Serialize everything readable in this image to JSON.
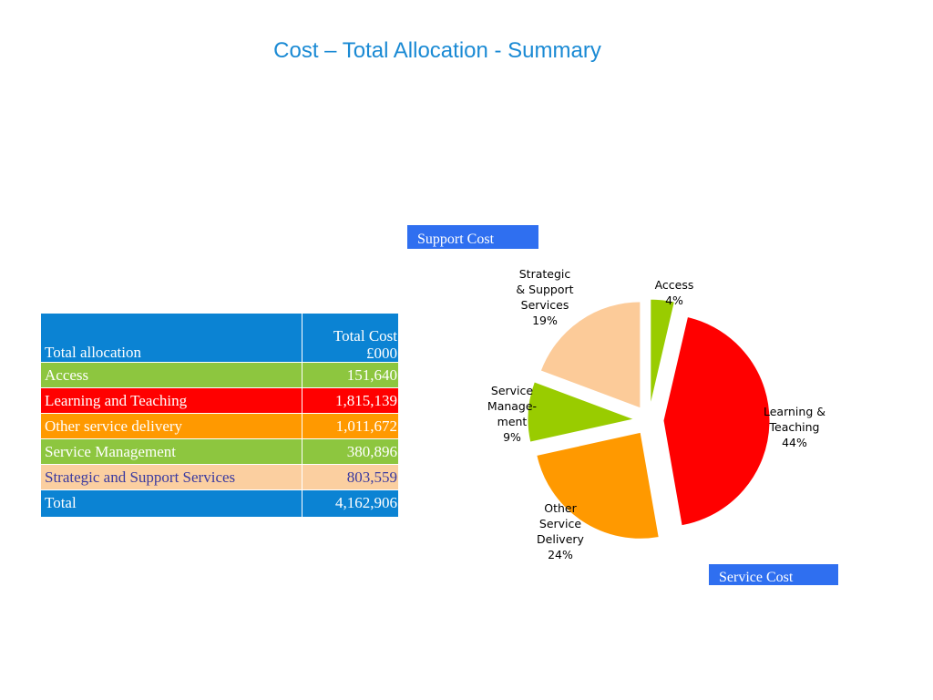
{
  "title": "Cost – Total Allocation - Summary",
  "tags": {
    "support": "Support Cost",
    "service": "Service Cost"
  },
  "table": {
    "header": {
      "label": "Total allocation",
      "cost_line1": "Total Cost",
      "cost_line2": "£000"
    },
    "rows": [
      {
        "label": "Access",
        "value": "151,640",
        "bg": "#8dc63f",
        "fg": "#ffffff"
      },
      {
        "label": "Learning and Teaching",
        "value": "1,815,139",
        "bg": "#ff0000",
        "fg": "#ffffff"
      },
      {
        "label": "Other service delivery",
        "value": "1,011,672",
        "bg": "#ff9900",
        "fg": "#ffffff"
      },
      {
        "label": "Service Management",
        "value": "380,896",
        "bg": "#8dc63f",
        "fg": "#ffffff"
      },
      {
        "label": "Strategic and Support Services",
        "value": "803,559",
        "bg": "#fbcfa0",
        "fg": "#3a3aa0"
      }
    ],
    "total": {
      "label": "Total",
      "value": "4,162,906"
    }
  },
  "chart_data": {
    "type": "pie",
    "title": "",
    "slices": [
      {
        "label_lines": [
          "Access",
          "4%"
        ],
        "value": 151640,
        "percent": 4,
        "color": "#99cc00"
      },
      {
        "label_lines": [
          "Learning &",
          "Teaching",
          "44%"
        ],
        "value": 1815139,
        "percent": 44,
        "color": "#ff0000"
      },
      {
        "label_lines": [
          "Other",
          "Service",
          "Delivery",
          "24%"
        ],
        "value": 1011672,
        "percent": 24,
        "color": "#ff9900"
      },
      {
        "label_lines": [
          "Service",
          "Manage-",
          "ment",
          "9%"
        ],
        "value": 380896,
        "percent": 9,
        "color": "#99cc00"
      },
      {
        "label_lines": [
          "Strategic",
          "& Support",
          "Services",
          "19%"
        ],
        "value": 803559,
        "percent": 19,
        "color": "#fccb99"
      }
    ],
    "start_angle": "12 o'clock",
    "direction": "clockwise",
    "exploded": true,
    "legend": "none"
  }
}
